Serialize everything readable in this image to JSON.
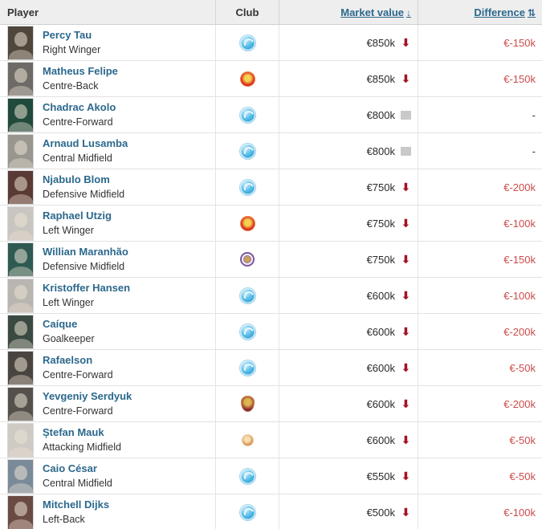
{
  "colors": {
    "link_blue": "#2b688c",
    "diff_red": "#cc4b4b",
    "arrow_red": "#a31325",
    "same_gray": "#c9c9c9",
    "header_bg": "#eeeeee"
  },
  "table": {
    "columns": {
      "player": "Player",
      "club": "Club",
      "market_value": "Market value",
      "difference": "Difference"
    },
    "sort": {
      "market_value_icon": "↓",
      "difference_icon": "⇅"
    },
    "trend_down_glyph": "⬇",
    "rows": [
      {
        "name": "Percy Tau",
        "position": "Right Winger",
        "club_badge": "blue-circle",
        "market_value": "€850k",
        "trend": "down",
        "difference": "€-150k",
        "photo_bg": "#4f463c"
      },
      {
        "name": "Matheus Felipe",
        "position": "Centre-Back",
        "club_badge": "red-crest",
        "market_value": "€850k",
        "trend": "down",
        "difference": "€-150k",
        "photo_bg": "#6e6a66"
      },
      {
        "name": "Chadrac Akolo",
        "position": "Centre-Forward",
        "club_badge": "blue-circle",
        "market_value": "€800k",
        "trend": "unchanged",
        "difference": "-",
        "photo_bg": "#1f4a3c"
      },
      {
        "name": "Arnaud Lusamba",
        "position": "Central Midfield",
        "club_badge": "blue-circle",
        "market_value": "€800k",
        "trend": "unchanged",
        "difference": "-",
        "photo_bg": "#98968f"
      },
      {
        "name": "Njabulo Blom",
        "position": "Defensive Midfield",
        "club_badge": "blue-circle",
        "market_value": "€750k",
        "trend": "down",
        "difference": "€-200k",
        "photo_bg": "#5a3a34"
      },
      {
        "name": "Raphael Utzig",
        "position": "Left Winger",
        "club_badge": "red-crest",
        "market_value": "€750k",
        "trend": "down",
        "difference": "€-100k",
        "photo_bg": "#c9c5c0"
      },
      {
        "name": "Willian Maranhão",
        "position": "Defensive Midfield",
        "club_badge": "purple-circle",
        "market_value": "€750k",
        "trend": "down",
        "difference": "€-150k",
        "photo_bg": "#2e5a52"
      },
      {
        "name": "Kristoffer Hansen",
        "position": "Left Winger",
        "club_badge": "blue-circle",
        "market_value": "€600k",
        "trend": "down",
        "difference": "€-100k",
        "photo_bg": "#b9b5b0"
      },
      {
        "name": "Caíque",
        "position": "Goalkeeper",
        "club_badge": "blue-circle",
        "market_value": "€600k",
        "trend": "down",
        "difference": "€-200k",
        "photo_bg": "#3a4a42"
      },
      {
        "name": "Rafaelson",
        "position": "Centre-Forward",
        "club_badge": "blue-circle",
        "market_value": "€600k",
        "trend": "down",
        "difference": "€-50k",
        "photo_bg": "#4a4440"
      },
      {
        "name": "Yevgeniy Serdyuk",
        "position": "Centre-Forward",
        "club_badge": "maroon-crest",
        "market_value": "€600k",
        "trend": "down",
        "difference": "€-200k",
        "photo_bg": "#55504c"
      },
      {
        "name": "Ștefan Mauk",
        "position": "Attacking Midfield",
        "club_badge": "orange-circle",
        "market_value": "€600k",
        "trend": "down",
        "difference": "€-50k",
        "photo_bg": "#cfcac4"
      },
      {
        "name": "Caio César",
        "position": "Central Midfield",
        "club_badge": "blue-circle",
        "market_value": "€550k",
        "trend": "down",
        "difference": "€-50k",
        "photo_bg": "#7a8a99"
      },
      {
        "name": "Mitchell Dijks",
        "position": "Left-Back",
        "club_badge": "blue-circle",
        "market_value": "€500k",
        "trend": "down",
        "difference": "€-100k",
        "photo_bg": "#6b4a44"
      }
    ]
  }
}
